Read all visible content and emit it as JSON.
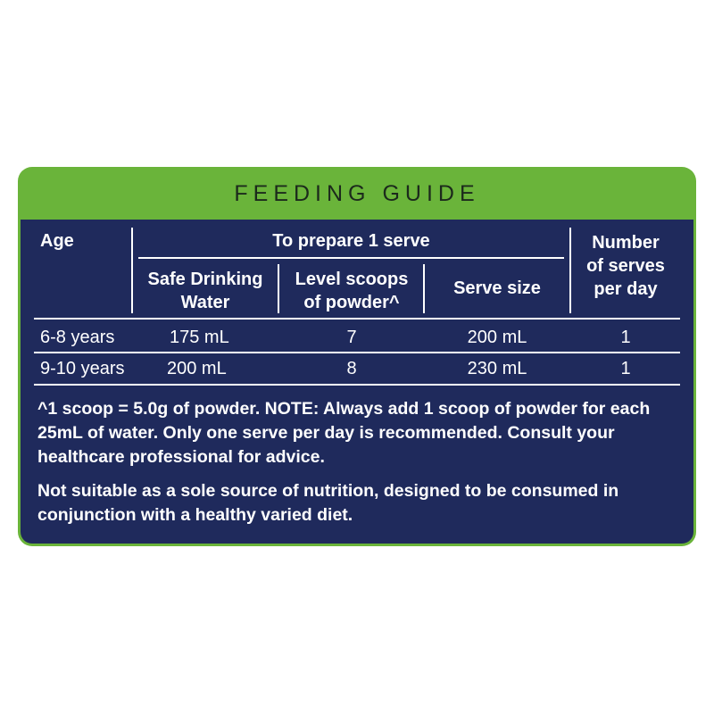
{
  "title": "FEEDING GUIDE",
  "colors": {
    "header": "#6ab43a",
    "panel": "#1f2a5c",
    "text": "#ffffff"
  },
  "headers": {
    "age": "Age",
    "prepare": "To prepare 1 serve",
    "water": [
      "Safe Drinking",
      "Water"
    ],
    "scoops": [
      "Level scoops",
      "of powder^"
    ],
    "serve_size": "Serve size",
    "serves_per_day": [
      "Number",
      "of serves",
      "per day"
    ]
  },
  "rows": [
    {
      "age": "6-8 years",
      "water": "175 mL",
      "scoops": "7",
      "serve_size": "200 mL",
      "serves": "1"
    },
    {
      "age": "9-10 years",
      "water": "200 mL",
      "scoops": "8",
      "serve_size": "230 mL",
      "serves": "1"
    }
  ],
  "notes": [
    "^1 scoop = 5.0g of powder. NOTE: Always add 1 scoop of powder for each 25mL of water. Only one serve per day is recommended. Consult your healthcare professional for advice.",
    "Not suitable as a sole source of nutrition, designed to be consumed in conjunction with a healthy varied diet."
  ]
}
